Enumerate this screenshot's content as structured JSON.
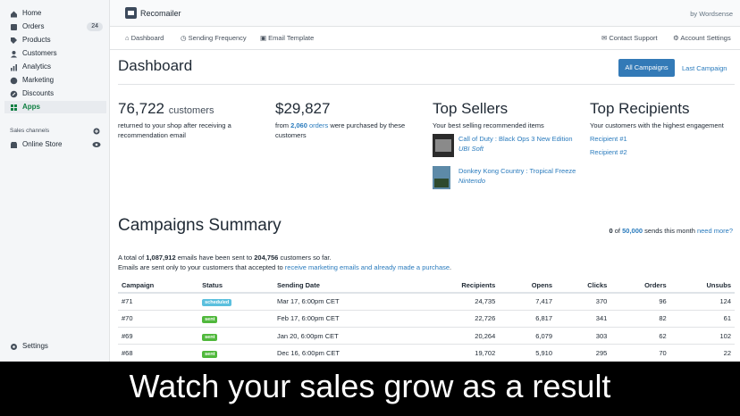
{
  "sidebar": {
    "nav": [
      {
        "label": "Home"
      },
      {
        "label": "Orders",
        "badge": "24"
      },
      {
        "label": "Products"
      },
      {
        "label": "Customers"
      },
      {
        "label": "Analytics"
      },
      {
        "label": "Marketing"
      },
      {
        "label": "Discounts"
      },
      {
        "label": "Apps"
      }
    ],
    "sales_channels_label": "Sales channels",
    "channels": [
      "Online Store"
    ],
    "settings": "Settings"
  },
  "topbar": {
    "app_name": "Recomailer",
    "by": "by Wordsense"
  },
  "tabs": {
    "left": [
      "Dashboard",
      "Sending Frequency",
      "Email Template"
    ],
    "right": [
      "Contact Support",
      "Account Settings"
    ]
  },
  "dashboard": {
    "title": "Dashboard",
    "primary_button": "All Campaigns",
    "secondary_link": "Last Campaign"
  },
  "stats": {
    "customers": {
      "value": "76,722",
      "unit": "customers",
      "description": "returned to your shop after receiving a recommendation email"
    },
    "revenue": {
      "value": "$29,827",
      "prefix": "from",
      "count": "2,060",
      "link": "orders",
      "suffix": "were purchased by these customers"
    },
    "top_sellers": {
      "title": "Top Sellers",
      "subtitle": "Your best selling recommended items",
      "items": [
        {
          "name": "Call of Duty : Black Ops 3 New Edition",
          "vendor": "UBI Soft"
        },
        {
          "name": "Donkey Kong Country : Tropical Freeze",
          "vendor": "Nintendo"
        }
      ]
    },
    "top_recipients": {
      "title": "Top Recipients",
      "subtitle": "Your customers with the highest engagement",
      "items": [
        "Recipient #1",
        "Recipient #2"
      ]
    }
  },
  "summary": {
    "title": "Campaigns Summary",
    "quota": {
      "used": "0",
      "of": "of",
      "limit": "50,000",
      "text": "sends this month",
      "link": "need more?"
    },
    "line1": {
      "a": "A total of",
      "emails": "1,087,912",
      "b": "emails have been sent to",
      "customers": "204,756",
      "c": "customers so far."
    },
    "line2": {
      "a": "Emails are sent only to your customers that accepted to",
      "link": "receive marketing emails and already made a purchase",
      "c": "."
    }
  },
  "table": {
    "headers": [
      "Campaign",
      "Status",
      "Sending Date",
      "Recipients",
      "Opens",
      "Clicks",
      "Orders",
      "Unsubs"
    ],
    "rows": [
      [
        "#71",
        "scheduled",
        "Mar 17, 6:00pm CET",
        "24,735",
        "7,417",
        "370",
        "96",
        "124"
      ],
      [
        "#70",
        "sent",
        "Feb 17, 6:00pm CET",
        "22,726",
        "6,817",
        "341",
        "82",
        "61"
      ],
      [
        "#69",
        "sent",
        "Jan 20, 6:00pm CET",
        "20,264",
        "6,079",
        "303",
        "62",
        "102"
      ],
      [
        "#68",
        "sent",
        "Dec 16, 6:00pm CET",
        "19,702",
        "5,910",
        "295",
        "70",
        "22"
      ]
    ]
  },
  "banner": {
    "text": "Watch your sales grow as a result"
  }
}
